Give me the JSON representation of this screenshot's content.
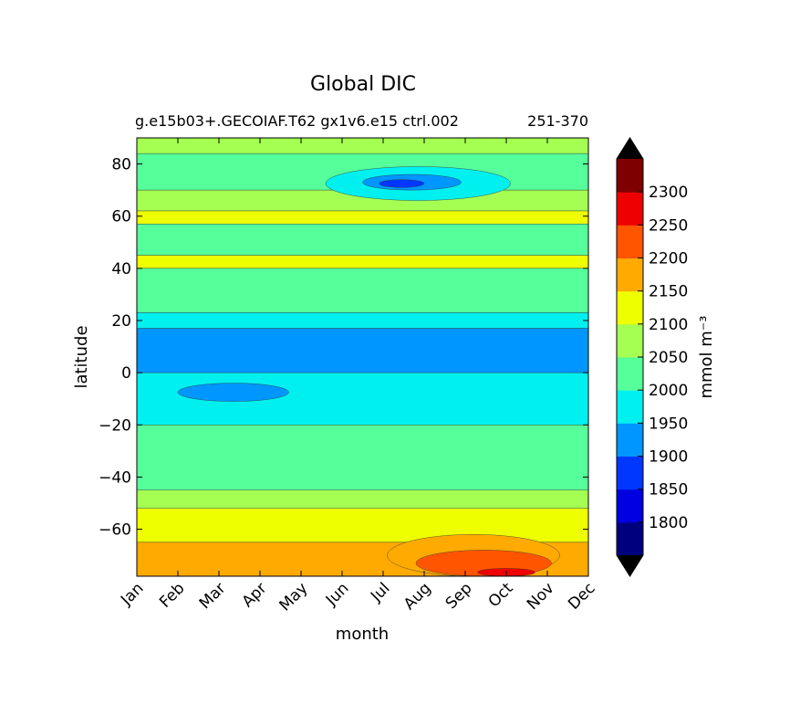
{
  "chart_data": {
    "type": "heatmap",
    "title": "Global DIC",
    "subtitle_left": "g.e15b03+.GECOIAF.T62 gx1v6.e15 ctrl.002",
    "subtitle_right": "251-370",
    "xlabel": "month",
    "ylabel": "latitude",
    "x_ticks": [
      "Jan",
      "Feb",
      "Mar",
      "Apr",
      "May",
      "Jun",
      "Jul",
      "Aug",
      "Sep",
      "Oct",
      "Nov",
      "Dec"
    ],
    "y_ticks": [
      "80",
      "60",
      "40",
      "20",
      "0",
      "−20",
      "−40",
      "−60"
    ],
    "y_tick_values": [
      80,
      60,
      40,
      20,
      0,
      -20,
      -40,
      -60
    ],
    "ylim": [
      -78,
      90
    ],
    "colorbar": {
      "label": "mmol m⁻³",
      "levels": [
        1750,
        1800,
        1850,
        1900,
        1950,
        2000,
        2050,
        2100,
        2150,
        2200,
        2250,
        2300,
        2350
      ],
      "tick_labels": [
        "1800",
        "1850",
        "1900",
        "1950",
        "2000",
        "2050",
        "2100",
        "2150",
        "2200",
        "2250",
        "2300"
      ],
      "tick_values": [
        1800,
        1850,
        1900,
        1950,
        2000,
        2050,
        2100,
        2150,
        2200,
        2250,
        2300
      ],
      "colors": [
        "#00007f",
        "#0000e0",
        "#0037ff",
        "#0096ff",
        "#00f0f0",
        "#55ff99",
        "#a4ff52",
        "#eeff00",
        "#ffaa00",
        "#ff5500",
        "#ee0000",
        "#7f0000"
      ],
      "extend": "both"
    },
    "latitude_bands": [
      {
        "lat_min": 84,
        "lat_max": 90,
        "value": 2075
      },
      {
        "lat_min": 70,
        "lat_max": 84,
        "value": 2025
      },
      {
        "lat_min": 62,
        "lat_max": 70,
        "value": 2075
      },
      {
        "lat_min": 57,
        "lat_max": 62,
        "value": 2125
      },
      {
        "lat_min": 45,
        "lat_max": 57,
        "value": 2025
      },
      {
        "lat_min": 40,
        "lat_max": 45,
        "value": 2125
      },
      {
        "lat_min": 23,
        "lat_max": 40,
        "value": 2025
      },
      {
        "lat_min": 17,
        "lat_max": 23,
        "value": 1975
      },
      {
        "lat_min": 0,
        "lat_max": 17,
        "value": 1925
      },
      {
        "lat_min": -20,
        "lat_max": 0,
        "value": 1975
      },
      {
        "lat_min": -45,
        "lat_max": -20,
        "value": 2025
      },
      {
        "lat_min": -52,
        "lat_max": -45,
        "value": 2075
      },
      {
        "lat_min": -65,
        "lat_max": -52,
        "value": 2125
      },
      {
        "lat_min": -78,
        "lat_max": -65,
        "value": 2175
      }
    ],
    "features": [
      {
        "month_min": 4.6,
        "month_max": 9.1,
        "lat_min": 66,
        "lat_max": 79,
        "value": 1975
      },
      {
        "month_min": 5.5,
        "month_max": 7.9,
        "lat_min": 70,
        "lat_max": 76,
        "value": 1925
      },
      {
        "month_min": 5.9,
        "month_max": 7.0,
        "lat_min": 71,
        "lat_max": 74,
        "value": 1875
      },
      {
        "month_min": 1.0,
        "month_max": 3.7,
        "lat_min": -11,
        "lat_max": -4,
        "value": 1925
      },
      {
        "month_min": 6.1,
        "month_max": 10.3,
        "lat_min": -78,
        "lat_max": -62,
        "value": 2175
      },
      {
        "month_min": 6.8,
        "month_max": 10.1,
        "lat_min": -78,
        "lat_max": -68,
        "value": 2225
      },
      {
        "month_min": 8.3,
        "month_max": 9.7,
        "lat_min": -78,
        "lat_max": -75,
        "value": 2275
      }
    ]
  }
}
